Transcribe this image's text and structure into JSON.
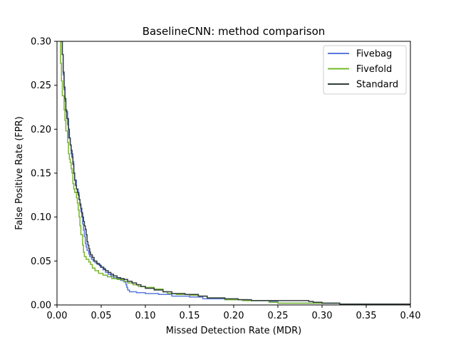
{
  "chart_data": {
    "type": "line",
    "title": "BaselineCNN: method comparison",
    "xlabel": "Missed Detection Rate (MDR)",
    "ylabel": "False Positive Rate (FPR)",
    "xlim": [
      0.0,
      0.4
    ],
    "ylim": [
      0.0,
      0.3
    ],
    "xticks": [
      "0.00",
      "0.05",
      "0.10",
      "0.15",
      "0.20",
      "0.25",
      "0.30",
      "0.35",
      "0.40"
    ],
    "yticks": [
      "0.00",
      "0.05",
      "0.10",
      "0.15",
      "0.20",
      "0.25",
      "0.30"
    ],
    "grid": false,
    "legend_position": "top-right",
    "series": [
      {
        "name": "Fivebag",
        "color": "#5b78e0",
        "points": [
          [
            0.004,
            0.3
          ],
          [
            0.006,
            0.285
          ],
          [
            0.007,
            0.262
          ],
          [
            0.008,
            0.245
          ],
          [
            0.009,
            0.232
          ],
          [
            0.01,
            0.22
          ],
          [
            0.012,
            0.205
          ],
          [
            0.013,
            0.19
          ],
          [
            0.015,
            0.182
          ],
          [
            0.016,
            0.172
          ],
          [
            0.018,
            0.163
          ],
          [
            0.019,
            0.15
          ],
          [
            0.02,
            0.142
          ],
          [
            0.022,
            0.132
          ],
          [
            0.024,
            0.128
          ],
          [
            0.025,
            0.12
          ],
          [
            0.026,
            0.113
          ],
          [
            0.027,
            0.106
          ],
          [
            0.028,
            0.1
          ],
          [
            0.029,
            0.092
          ],
          [
            0.03,
            0.085
          ],
          [
            0.031,
            0.078
          ],
          [
            0.032,
            0.07
          ],
          [
            0.033,
            0.066
          ],
          [
            0.034,
            0.062
          ],
          [
            0.036,
            0.058
          ],
          [
            0.037,
            0.055
          ],
          [
            0.039,
            0.052
          ],
          [
            0.041,
            0.05
          ],
          [
            0.043,
            0.048
          ],
          [
            0.046,
            0.046
          ],
          [
            0.049,
            0.043
          ],
          [
            0.052,
            0.04
          ],
          [
            0.055,
            0.037
          ],
          [
            0.058,
            0.035
          ],
          [
            0.061,
            0.033
          ],
          [
            0.064,
            0.031
          ],
          [
            0.068,
            0.03
          ],
          [
            0.072,
            0.028
          ],
          [
            0.076,
            0.026
          ],
          [
            0.078,
            0.023
          ],
          [
            0.079,
            0.02
          ],
          [
            0.08,
            0.017
          ],
          [
            0.082,
            0.015
          ],
          [
            0.09,
            0.014
          ],
          [
            0.1,
            0.013
          ],
          [
            0.115,
            0.012
          ],
          [
            0.13,
            0.01
          ],
          [
            0.15,
            0.009
          ],
          [
            0.165,
            0.007
          ],
          [
            0.19,
            0.006
          ],
          [
            0.215,
            0.005
          ],
          [
            0.24,
            0.004
          ],
          [
            0.25,
            0.002
          ],
          [
            0.3,
            0.002
          ],
          [
            0.32,
            0.001
          ],
          [
            0.4,
            0.001
          ]
        ]
      },
      {
        "name": "Fivefold",
        "color": "#77b82a",
        "points": [
          [
            0.003,
            0.3
          ],
          [
            0.004,
            0.275
          ],
          [
            0.005,
            0.255
          ],
          [
            0.006,
            0.238
          ],
          [
            0.008,
            0.222
          ],
          [
            0.009,
            0.21
          ],
          [
            0.01,
            0.198
          ],
          [
            0.012,
            0.185
          ],
          [
            0.013,
            0.172
          ],
          [
            0.014,
            0.166
          ],
          [
            0.015,
            0.162
          ],
          [
            0.016,
            0.155
          ],
          [
            0.017,
            0.15
          ],
          [
            0.018,
            0.138
          ],
          [
            0.019,
            0.132
          ],
          [
            0.02,
            0.128
          ],
          [
            0.022,
            0.122
          ],
          [
            0.023,
            0.116
          ],
          [
            0.024,
            0.108
          ],
          [
            0.025,
            0.1
          ],
          [
            0.026,
            0.09
          ],
          [
            0.027,
            0.08
          ],
          [
            0.029,
            0.068
          ],
          [
            0.03,
            0.06
          ],
          [
            0.031,
            0.055
          ],
          [
            0.033,
            0.052
          ],
          [
            0.036,
            0.049
          ],
          [
            0.038,
            0.046
          ],
          [
            0.04,
            0.042
          ],
          [
            0.043,
            0.039
          ],
          [
            0.047,
            0.036
          ],
          [
            0.052,
            0.034
          ],
          [
            0.057,
            0.032
          ],
          [
            0.062,
            0.03
          ],
          [
            0.068,
            0.029
          ],
          [
            0.075,
            0.027
          ],
          [
            0.08,
            0.025
          ],
          [
            0.086,
            0.023
          ],
          [
            0.092,
            0.021
          ],
          [
            0.1,
            0.02
          ],
          [
            0.11,
            0.018
          ],
          [
            0.12,
            0.015
          ],
          [
            0.125,
            0.013
          ],
          [
            0.135,
            0.012
          ],
          [
            0.15,
            0.011
          ],
          [
            0.16,
            0.01
          ],
          [
            0.17,
            0.008
          ],
          [
            0.19,
            0.006
          ],
          [
            0.21,
            0.005
          ],
          [
            0.24,
            0.003
          ],
          [
            0.25,
            0.002
          ],
          [
            0.29,
            0.002
          ],
          [
            0.32,
            0.001
          ],
          [
            0.4,
            0.001
          ]
        ]
      },
      {
        "name": "Standard",
        "color": "#333d3d",
        "points": [
          [
            0.005,
            0.3
          ],
          [
            0.006,
            0.285
          ],
          [
            0.007,
            0.265
          ],
          [
            0.008,
            0.248
          ],
          [
            0.009,
            0.235
          ],
          [
            0.01,
            0.222
          ],
          [
            0.011,
            0.212
          ],
          [
            0.013,
            0.2
          ],
          [
            0.014,
            0.19
          ],
          [
            0.015,
            0.182
          ],
          [
            0.016,
            0.176
          ],
          [
            0.017,
            0.168
          ],
          [
            0.018,
            0.16
          ],
          [
            0.019,
            0.15
          ],
          [
            0.02,
            0.142
          ],
          [
            0.021,
            0.136
          ],
          [
            0.022,
            0.132
          ],
          [
            0.023,
            0.128
          ],
          [
            0.024,
            0.125
          ],
          [
            0.025,
            0.12
          ],
          [
            0.026,
            0.115
          ],
          [
            0.027,
            0.11
          ],
          [
            0.028,
            0.105
          ],
          [
            0.029,
            0.1
          ],
          [
            0.03,
            0.095
          ],
          [
            0.031,
            0.09
          ],
          [
            0.032,
            0.086
          ],
          [
            0.033,
            0.08
          ],
          [
            0.034,
            0.072
          ],
          [
            0.035,
            0.068
          ],
          [
            0.036,
            0.064
          ],
          [
            0.037,
            0.06
          ],
          [
            0.038,
            0.057
          ],
          [
            0.04,
            0.054
          ],
          [
            0.042,
            0.05
          ],
          [
            0.045,
            0.047
          ],
          [
            0.048,
            0.045
          ],
          [
            0.05,
            0.043
          ],
          [
            0.053,
            0.041
          ],
          [
            0.055,
            0.039
          ],
          [
            0.058,
            0.037
          ],
          [
            0.061,
            0.035
          ],
          [
            0.064,
            0.033
          ],
          [
            0.068,
            0.031
          ],
          [
            0.072,
            0.03
          ],
          [
            0.076,
            0.029
          ],
          [
            0.08,
            0.027
          ],
          [
            0.085,
            0.025
          ],
          [
            0.09,
            0.023
          ],
          [
            0.095,
            0.021
          ],
          [
            0.1,
            0.019
          ],
          [
            0.11,
            0.017
          ],
          [
            0.12,
            0.015
          ],
          [
            0.13,
            0.013
          ],
          [
            0.145,
            0.012
          ],
          [
            0.16,
            0.01
          ],
          [
            0.17,
            0.008
          ],
          [
            0.19,
            0.007
          ],
          [
            0.205,
            0.006
          ],
          [
            0.22,
            0.005
          ],
          [
            0.245,
            0.005
          ],
          [
            0.285,
            0.004
          ],
          [
            0.29,
            0.003
          ],
          [
            0.3,
            0.002
          ],
          [
            0.315,
            0.002
          ],
          [
            0.32,
            0.001
          ],
          [
            0.4,
            0.001
          ]
        ]
      }
    ]
  }
}
